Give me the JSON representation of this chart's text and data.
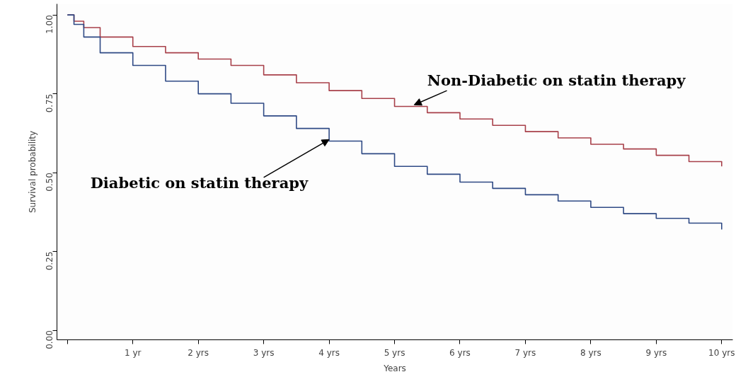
{
  "chart_data": {
    "type": "step",
    "xlabel": "Years",
    "ylabel": "Survival probability",
    "xlim": [
      -0.16,
      10.17
    ],
    "ylim": [
      -0.03,
      1.035
    ],
    "xticks": [
      {
        "value": 0,
        "label": null
      },
      {
        "value": 1,
        "label": "1 yr"
      },
      {
        "value": 2,
        "label": "2 yrs"
      },
      {
        "value": 3,
        "label": "3 yrs"
      },
      {
        "value": 4,
        "label": "4 yrs"
      },
      {
        "value": 5,
        "label": "5 yrs"
      },
      {
        "value": 6,
        "label": "6 yrs"
      },
      {
        "value": 7,
        "label": "7 yrs"
      },
      {
        "value": 8,
        "label": "8 yrs"
      },
      {
        "value": 9,
        "label": "9 yrs"
      },
      {
        "value": 10,
        "label": "10 yrs"
      }
    ],
    "yticks": [
      {
        "value": 0,
        "label": "0.00"
      },
      {
        "value": 0.25,
        "label": "0.25"
      },
      {
        "value": 0.5,
        "label": "0.50"
      },
      {
        "value": 0.75,
        "label": "0.75"
      },
      {
        "value": 1,
        "label": "1.00"
      }
    ],
    "grid": false,
    "x": [
      0,
      0.1,
      0.25,
      0.5,
      1,
      1.5,
      2,
      2.5,
      3,
      3.5,
      4,
      4.5,
      5,
      5.5,
      6,
      6.5,
      7,
      7.5,
      8,
      8.5,
      9,
      9.5,
      10
    ],
    "series": [
      {
        "name": "Non-Diabetic on statin therapy",
        "color": "#a8404a",
        "values": [
          1.0,
          0.98,
          0.96,
          0.93,
          0.9,
          0.88,
          0.86,
          0.84,
          0.81,
          0.785,
          0.76,
          0.735,
          0.71,
          0.69,
          0.67,
          0.65,
          0.63,
          0.61,
          0.59,
          0.575,
          0.555,
          0.535,
          0.52
        ]
      },
      {
        "name": "Diabetic on statin therapy",
        "color": "#2f4a85",
        "values": [
          1.0,
          0.97,
          0.93,
          0.88,
          0.84,
          0.79,
          0.75,
          0.72,
          0.68,
          0.64,
          0.6,
          0.56,
          0.52,
          0.495,
          0.47,
          0.45,
          0.43,
          0.41,
          0.39,
          0.37,
          0.355,
          0.34,
          0.32
        ]
      }
    ]
  }
}
